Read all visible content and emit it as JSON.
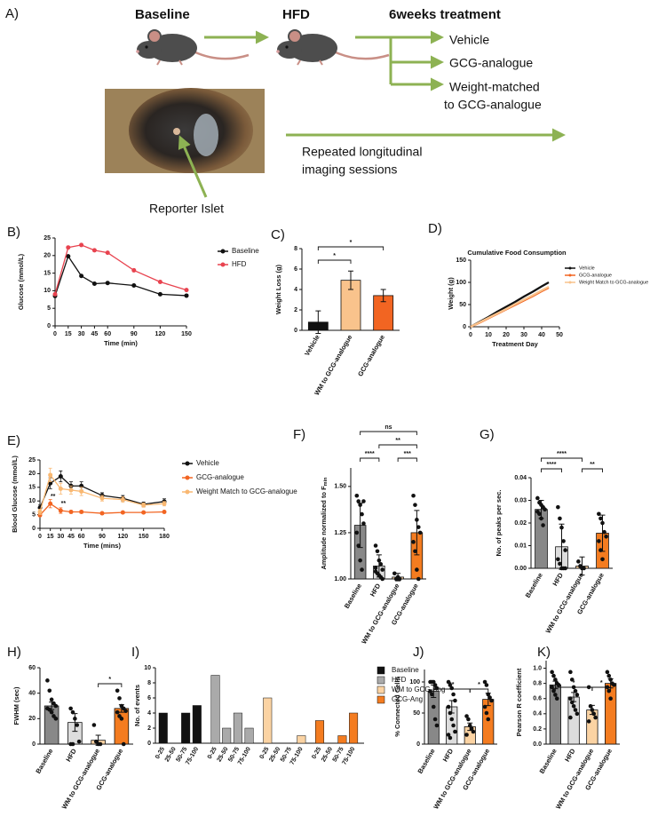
{
  "schematic": {
    "panel": "A)",
    "baseline": "Baseline",
    "hfd": "HFD",
    "treatment": "6weeks treatment",
    "arms": [
      "Vehicle",
      "GCG-analogue",
      "Weight-matched",
      "to GCG-analogue"
    ],
    "imaging": [
      "Repeated longitudinal",
      "imaging sessions"
    ],
    "islet_label": "Reporter Islet"
  },
  "chart_data": [
    {
      "type": "line",
      "panel": "B)",
      "xlabel": "Time (min)",
      "ylabel": "Glucose (mmol/L)",
      "markers": true,
      "x": [
        0,
        15,
        30,
        45,
        60,
        90,
        120,
        150
      ],
      "xlim": [
        0,
        150
      ],
      "xticks": [
        0,
        15,
        30,
        45,
        60,
        90,
        120,
        150
      ],
      "ylim": [
        0,
        25
      ],
      "yticks": [
        0,
        5,
        10,
        15,
        20,
        25
      ],
      "series": [
        {
          "name": "Baseline",
          "color": "#111111",
          "values": [
            8.5,
            19.8,
            14.2,
            12,
            12.2,
            11.5,
            9,
            8.6
          ]
        },
        {
          "name": "HFD",
          "color": "#e8434f",
          "values": [
            9,
            22.3,
            23,
            21.5,
            20.8,
            15.8,
            12.5,
            10.2
          ]
        }
      ]
    },
    {
      "type": "bar",
      "panel": "C)",
      "ylabel": "Weight Loss (g)",
      "categories": [
        "Vehicle",
        "WM to GCG-analogue",
        "GCG-analogue"
      ],
      "values": [
        0.8,
        4.9,
        3.4
      ],
      "errors": [
        1.1,
        0.9,
        0.6
      ],
      "colors": [
        "#111111",
        "#f9c38c",
        "#f26522"
      ],
      "ylim": [
        0,
        8
      ],
      "yticks": [
        0,
        2,
        4,
        6,
        8
      ],
      "brackets": [
        {
          "between": [
            "Vehicle",
            "WM to GCG-analogue"
          ],
          "label": "*"
        },
        {
          "between": [
            "Vehicle",
            "GCG-analogue"
          ],
          "label": "*"
        }
      ]
    },
    {
      "type": "line",
      "panel": "D)",
      "title": "Cumulative Food Consumption",
      "xlabel": "Treatment Day",
      "ylabel": "Weight (g)",
      "markers": false,
      "x": [
        0,
        5,
        10,
        15,
        20,
        25,
        30,
        35,
        40,
        44
      ],
      "xlim": [
        0,
        50
      ],
      "xticks": [
        0,
        10,
        20,
        30,
        40,
        50
      ],
      "ylim": [
        0,
        150
      ],
      "yticks": [
        0,
        50,
        100,
        150
      ],
      "series": [
        {
          "name": "Vehicle",
          "color": "#111111",
          "values": [
            0,
            11,
            22,
            34,
            45,
            56,
            68,
            79,
            91,
            100
          ]
        },
        {
          "name": "GCG-analogue",
          "color": "#f26522",
          "values": [
            0,
            9,
            19,
            29,
            39,
            49,
            59,
            69,
            80,
            88
          ]
        },
        {
          "name": "Weight Match to GCG-analogue",
          "color": "#f9c38c",
          "values": [
            0,
            10,
            20,
            30,
            40,
            51,
            61,
            71,
            82,
            90
          ]
        }
      ]
    },
    {
      "type": "line",
      "panel": "E)",
      "xlabel": "Time (mins)",
      "ylabel": "Blood Glucose (mmol/L)",
      "markers": true,
      "x": [
        0,
        15,
        30,
        45,
        60,
        90,
        120,
        150,
        180
      ],
      "xlim": [
        0,
        180
      ],
      "xticks": [
        0,
        15,
        30,
        45,
        60,
        90,
        120,
        150,
        180
      ],
      "ylim": [
        0,
        25
      ],
      "yticks": [
        0,
        5,
        10,
        15,
        20,
        25
      ],
      "annotations": [
        "**",
        "**"
      ],
      "series": [
        {
          "name": "Vehicle",
          "color": "#111111",
          "values": [
            7.5,
            16.5,
            19,
            15.5,
            15.5,
            12,
            11,
            8.8,
            9.8
          ],
          "errors": [
            1,
            2,
            2,
            1.5,
            1.5,
            1,
            1,
            0.8,
            1
          ]
        },
        {
          "name": "GCG-analogue",
          "color": "#f26522",
          "values": [
            4.8,
            9,
            6.5,
            6,
            6,
            5.5,
            5.8,
            5.8,
            6
          ],
          "errors": [
            0.5,
            1.5,
            1,
            0.5,
            0.5,
            0.4,
            0.4,
            0.4,
            0.4
          ]
        },
        {
          "name": "Weight Match to GCG-analogue",
          "color": "#f9b872",
          "values": [
            6,
            19.5,
            14.5,
            14,
            13.5,
            11,
            10.5,
            8.5,
            9
          ],
          "errors": [
            1,
            2.5,
            2,
            1.5,
            1.5,
            1,
            1,
            0.8,
            0.8
          ]
        }
      ]
    },
    {
      "type": "bar",
      "panel": "F)",
      "ylabel": "Amplitude normalized to F",
      "ylabel_sub": "min",
      "categories": [
        "Baseline",
        "HFD",
        "WM to GCG-analogue",
        "GCG-analogue"
      ],
      "values": [
        1.29,
        1.07,
        1.01,
        1.25
      ],
      "errors": [
        0.12,
        0.06,
        0.02,
        0.12
      ],
      "colors": [
        "#888888",
        "#dddddd",
        "#fbd3a3",
        "#f47c20"
      ],
      "ylim": [
        1,
        1.6
      ],
      "yticks": [
        {
          "value": 1,
          "label": "1.00"
        },
        {
          "value": 1.25,
          "label": "1.25"
        },
        {
          "value": 1.5,
          "label": "1.50"
        }
      ],
      "points": [
        [
          1.45,
          1.42,
          1.4,
          1.35,
          1.3,
          1.25,
          1.18,
          1.1,
          1.05,
          1.42
        ],
        [
          1.18,
          1.15,
          1.1,
          1.08,
          1.05,
          1.04,
          1.03,
          1.02,
          1.01,
          1,
          1.06
        ],
        [
          1.03,
          1,
          1.01,
          1
        ],
        [
          1.45,
          1.4,
          1.32,
          1.28,
          1.25,
          1.2,
          1.15,
          1.05,
          1
        ]
      ],
      "brackets": [
        {
          "between": [
            "Baseline",
            "HFD"
          ],
          "label": "****"
        },
        {
          "between": [
            "WM to GCG-analogue",
            "GCG-analogue"
          ],
          "label": "***"
        },
        {
          "between": [
            "HFD",
            "GCG-analogue"
          ],
          "label": "**"
        },
        {
          "between": [
            "Baseline",
            "GCG-analogue"
          ],
          "label": "ns"
        }
      ]
    },
    {
      "type": "bar",
      "panel": "G)",
      "ylabel": "No. of peaks per sec.",
      "categories": [
        "Baseline",
        "HFD",
        "WM to GCG-analogue",
        "GCG-analogue"
      ],
      "values": [
        0.026,
        0.0095,
        0.001,
        0.0155
      ],
      "errors": [
        0.004,
        0.01,
        0.004,
        0.008
      ],
      "colors": [
        "#888888",
        "#dddddd",
        "#fbd3a3",
        "#f47c20"
      ],
      "ylim": [
        0,
        0.04
      ],
      "yticks": [
        {
          "value": 0,
          "label": "0.00"
        },
        0.01,
        0.02,
        0.03,
        0.04
      ],
      "points": [
        [
          0.031,
          0.029,
          0.028,
          0.027,
          0.026,
          0.025,
          0.024,
          0.022,
          0.019
        ],
        [
          0.027,
          0.022,
          0.018,
          0.012,
          0.008,
          0.004,
          0.002,
          0,
          0,
          0
        ],
        [
          0.003,
          0.001,
          0,
          0
        ],
        [
          0.024,
          0.022,
          0.02,
          0.016,
          0.014,
          0.012,
          0.008,
          0.004
        ]
      ],
      "brackets": [
        {
          "between": [
            "Baseline",
            "HFD"
          ],
          "label": "****"
        },
        {
          "between": [
            "Baseline",
            "WM to GCG-analogue"
          ],
          "label": "****"
        },
        {
          "between": [
            "WM to GCG-analogue",
            "GCG-analogue"
          ],
          "label": "**"
        }
      ]
    },
    {
      "type": "bar",
      "panel": "H)",
      "ylabel": "FWHM (sec)",
      "categories": [
        "Baseline",
        "HFD",
        "WM to GCG-analogue",
        "GCG-analogue"
      ],
      "values": [
        30,
        17,
        3,
        28
      ],
      "errors": [
        3,
        7,
        4,
        3
      ],
      "colors": [
        "#888888",
        "#dddddd",
        "#fbd3a3",
        "#f47c20"
      ],
      "ylim": [
        0,
        60
      ],
      "yticks": [
        0,
        20,
        40,
        60
      ],
      "points": [
        [
          50,
          42,
          35,
          32,
          30,
          28,
          27,
          25,
          22,
          20
        ],
        [
          28,
          25,
          20,
          15,
          2,
          0,
          0
        ],
        [
          15,
          2,
          0,
          0
        ],
        [
          42,
          36,
          30,
          28,
          26,
          25,
          22,
          20,
          0
        ]
      ],
      "brackets": [
        {
          "between": [
            "WM to GCG-analogue",
            "GCG-analogue"
          ],
          "label": "*"
        }
      ]
    },
    {
      "type": "grouped-bar",
      "panel": "I)",
      "ylabel": "No. of events",
      "categories": [
        "0-25",
        "25-50",
        "50-75",
        "75-100"
      ],
      "ylim": [
        0,
        10
      ],
      "yticks": [
        0,
        2,
        4,
        6,
        8,
        10
      ],
      "series": [
        {
          "name": "Baseline",
          "color": "#111111",
          "values": [
            4,
            0,
            4,
            5
          ]
        },
        {
          "name": "HFD",
          "color": "#aaaaaa",
          "values": [
            9,
            2,
            4,
            2
          ]
        },
        {
          "name": "WM to GCG-Ang",
          "color": "#fbd3a3",
          "values": [
            6,
            0,
            0,
            1
          ]
        },
        {
          "name": "GCG-Ang",
          "color": "#f47c20",
          "values": [
            3,
            0,
            1,
            4
          ]
        }
      ]
    },
    {
      "type": "bar",
      "panel": "J)",
      "ylabel": "% Connected Cells",
      "categories": [
        "Baseline",
        "HFD",
        "WM to GCG-analogue",
        "GCG-analogue"
      ],
      "values": [
        85,
        60,
        28,
        72
      ],
      "errors": [
        10,
        10,
        6,
        10
      ],
      "colors": [
        "#888888",
        "#dddddd",
        "#fbd3a3",
        "#f47c20"
      ],
      "ylim": [
        0,
        120
      ],
      "yticks": [
        0,
        50,
        100
      ],
      "points": [
        [
          100,
          100,
          100,
          95,
          90,
          85,
          80,
          60,
          40,
          30
        ],
        [
          100,
          95,
          90,
          80,
          70,
          60,
          50,
          40,
          30,
          20,
          15,
          10
        ],
        [
          45,
          40,
          30,
          25,
          20,
          15
        ],
        [
          100,
          95,
          80,
          75,
          70,
          60,
          50,
          40
        ]
      ],
      "brackets": [
        {
          "between": [
            "Baseline",
            "WM to GCG-analogue"
          ],
          "label": "**"
        },
        {
          "between": [
            "WM to GCG-analogue",
            "GCG-analogue"
          ],
          "label": "*"
        }
      ]
    },
    {
      "type": "bar",
      "panel": "K)",
      "ylabel": "Pearson R coefficient",
      "categories": [
        "Baseline",
        "HFD",
        "WM to GCG-analogue",
        "GCG-analogue"
      ],
      "values": [
        0.78,
        0.62,
        0.45,
        0.8
      ],
      "errors": [
        0.05,
        0.06,
        0.06,
        0.06
      ],
      "colors": [
        "#888888",
        "#dddddd",
        "#fbd3a3",
        "#f47c20"
      ],
      "ylim": [
        0,
        1.1
      ],
      "yticks": [
        {
          "value": 0,
          "label": "0.0"
        },
        0.2,
        0.4,
        0.6,
        0.8,
        {
          "value": 1,
          "label": "1.0"
        }
      ],
      "points": [
        [
          0.95,
          0.9,
          0.85,
          0.8,
          0.78,
          0.75,
          0.7,
          0.65,
          0.6
        ],
        [
          0.95,
          0.85,
          0.75,
          0.7,
          0.65,
          0.6,
          0.55,
          0.5,
          0.45,
          0.4,
          0.35
        ],
        [
          0.75,
          0.5,
          0.45,
          0.4,
          0.35,
          0.3
        ],
        [
          0.95,
          0.9,
          0.85,
          0.8,
          0.78,
          0.75,
          0.7,
          0.6
        ]
      ],
      "brackets": [
        {
          "between": [
            "Baseline",
            "WM to GCG-analogue"
          ],
          "label": "*"
        },
        {
          "between": [
            "WM to GCG-analogue",
            "GCG-analogue"
          ],
          "label": "*"
        }
      ]
    }
  ]
}
